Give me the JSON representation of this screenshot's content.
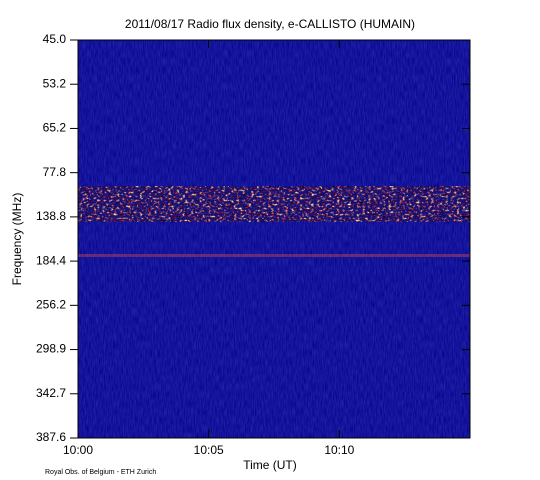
{
  "chart_data": {
    "type": "spectrogram",
    "title": "2011/08/17  Radio flux density, e-CALLISTO (HUMAIN)",
    "x_label": "Time (UT)",
    "y_label": "Frequency (MHz)",
    "footnote": "Royal Obs. of Belgium - ETH Zurich",
    "xticks": [
      "10:00",
      "10:05",
      "10:10"
    ],
    "yticks": [
      {
        "value": 45.0,
        "label": "45.0"
      },
      {
        "value": 53.2,
        "label": "53.2"
      },
      {
        "value": 65.2,
        "label": "65.2"
      },
      {
        "value": 77.8,
        "label": "77.8"
      },
      {
        "value": 138.8,
        "label": "138.8"
      },
      {
        "value": 184.4,
        "label": "184.4"
      },
      {
        "value": 256.2,
        "label": "256.2"
      },
      {
        "value": 298.9,
        "label": "298.9"
      },
      {
        "value": 342.7,
        "label": "342.7"
      },
      {
        "value": 387.6,
        "label": "387.6"
      }
    ]
  }
}
